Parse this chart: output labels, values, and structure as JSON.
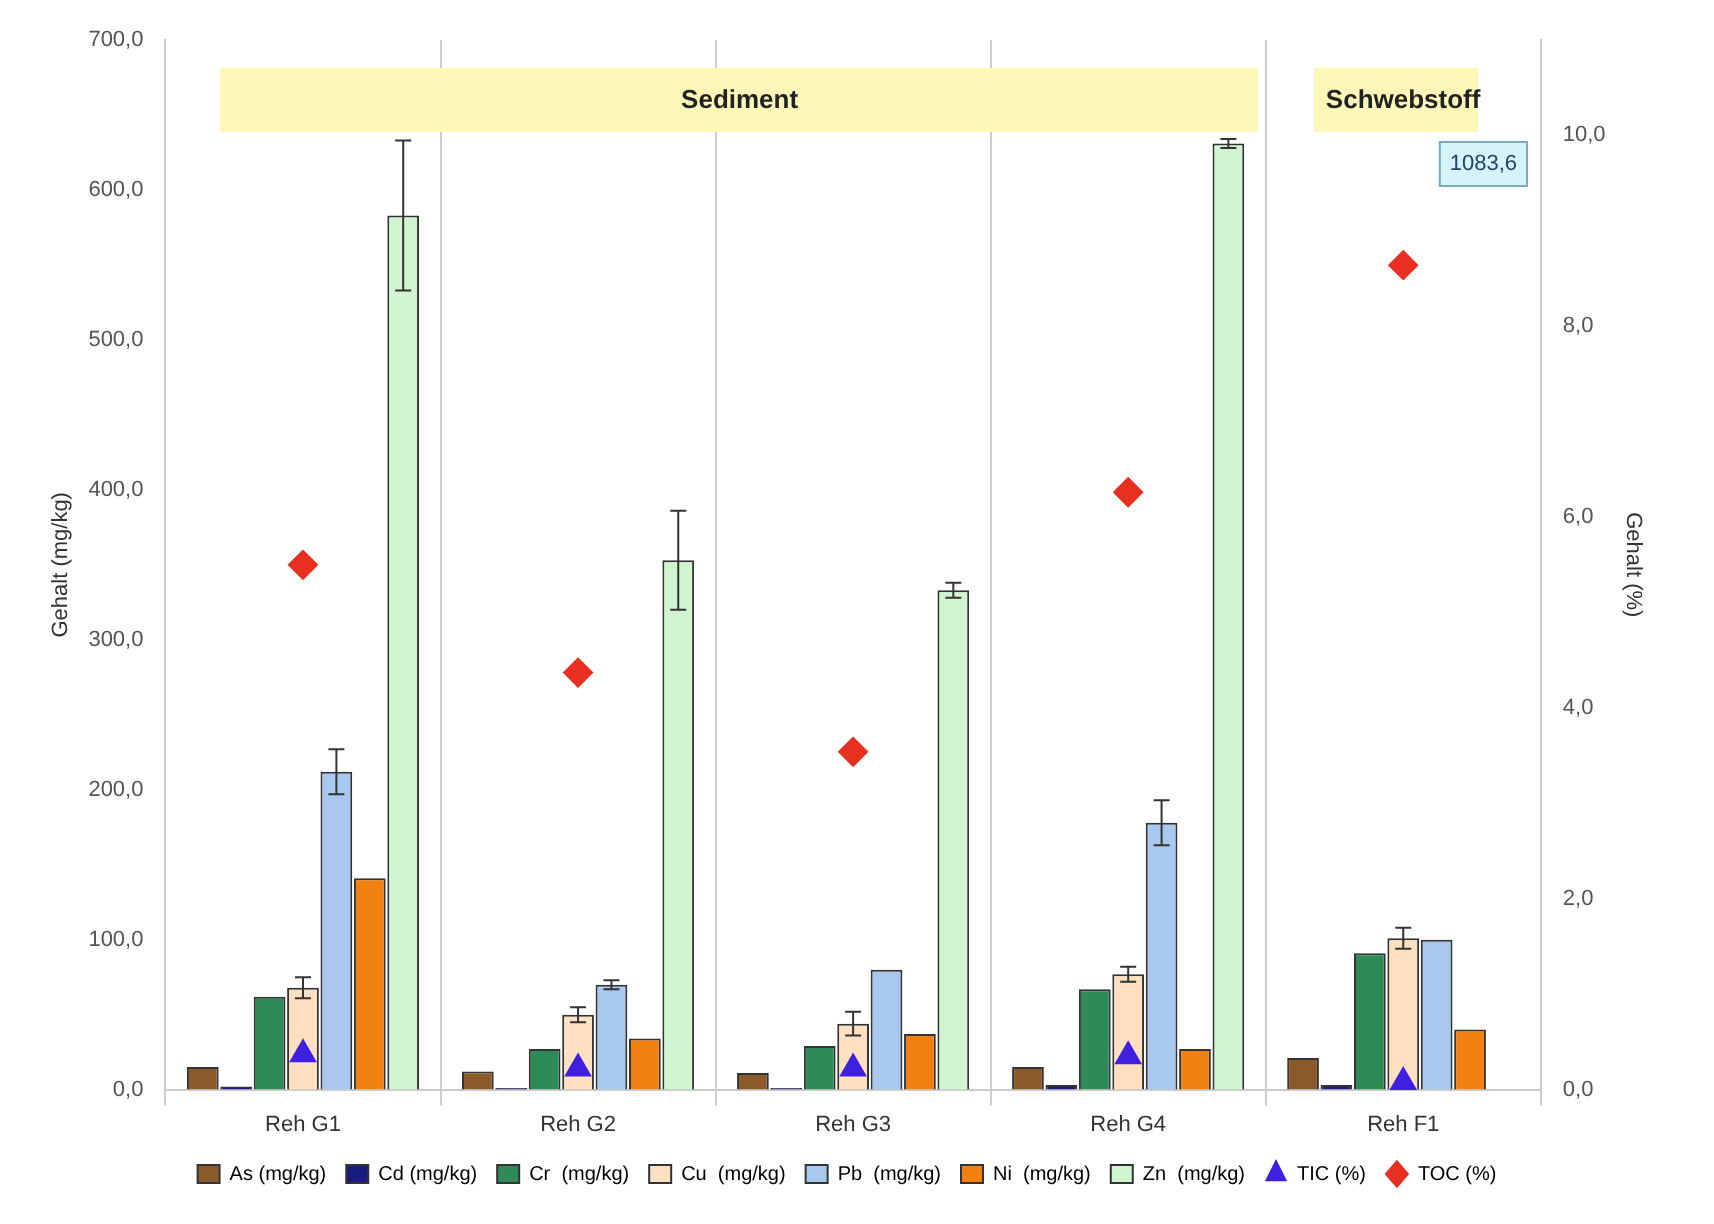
{
  "chart_data": {
    "type": "bar",
    "ylabel": "Gehalt (mg/kg)",
    "y2label": "Gehalt (%)",
    "categories": [
      "Reh G1",
      "Reh G2",
      "Reh G3",
      "Reh G4",
      "Reh F1"
    ],
    "series": [
      {
        "name": "As (mg/kg)",
        "color": "#8b5a2b",
        "values": [
          15,
          12,
          11,
          15,
          21
        ]
      },
      {
        "name": "Cd (mg/kg)",
        "color": "#1a1a80",
        "values": [
          2,
          1,
          1,
          3,
          3
        ]
      },
      {
        "name": "Cr  (mg/kg)",
        "color": "#2e8b57",
        "values": [
          62,
          27,
          29,
          67,
          91
        ]
      },
      {
        "name": "Cu  (mg/kg)",
        "color": "#fde0c0",
        "values": [
          68,
          50,
          44,
          77,
          101
        ],
        "errors": [
          7,
          5,
          8,
          5,
          7
        ]
      },
      {
        "name": "Pb  (mg/kg)",
        "color": "#a8c8f0",
        "values": [
          212,
          70,
          80,
          178,
          100
        ],
        "errors": [
          15,
          3,
          null,
          15,
          null
        ]
      },
      {
        "name": "Ni  (mg/kg)",
        "color": "#f08010",
        "values": [
          141,
          34,
          37,
          27,
          40
        ]
      },
      {
        "name": "Zn  (mg/kg)",
        "color": "#d0f5d0",
        "values": [
          583,
          353,
          333,
          631,
          null
        ],
        "errors": [
          50,
          33,
          5,
          3,
          null
        ],
        "value_labels": [
          null,
          null,
          null,
          null,
          "1083,6"
        ]
      },
      {
        "name": "TIC (%)",
        "type": "scatter",
        "axis": "y2",
        "marker": "triangle",
        "color": "#4020e0",
        "x": [
          "Reh G1",
          "Reh G2",
          "Reh G3",
          "Reh G4",
          "Reh F1"
        ],
        "values": [
          0.37,
          0.22,
          0.22,
          0.35,
          0.08
        ]
      },
      {
        "name": "TOC (%)",
        "type": "scatter",
        "axis": "y2",
        "marker": "diamond",
        "color": "#e83020",
        "x": [
          "Reh G1",
          "Reh G2",
          "Reh G3",
          "Reh G4",
          "Reh F1"
        ],
        "values": [
          5.5,
          4.37,
          3.54,
          6.26,
          8.64
        ]
      }
    ],
    "ylim": [
      0,
      700
    ],
    "yticks": [
      {
        "value": 0,
        "label": "0,0"
      },
      {
        "value": 100,
        "label": "100,0"
      },
      {
        "value": 200,
        "label": "200,0"
      },
      {
        "value": 300,
        "label": "300,0"
      },
      {
        "value": 400,
        "label": "400,0"
      },
      {
        "value": 500,
        "label": "500,0"
      },
      {
        "value": 600,
        "label": "600,0"
      },
      {
        "value": 700,
        "label": "700,0"
      }
    ],
    "y2lim": [
      0,
      11
    ],
    "y2ticks": [
      {
        "value": 0,
        "label": "0,0"
      },
      {
        "value": 2,
        "label": "2,0"
      },
      {
        "value": 4,
        "label": "4,0"
      },
      {
        "value": 6,
        "label": "6,0"
      },
      {
        "value": 8,
        "label": "8,0"
      },
      {
        "value": 10,
        "label": "10,0"
      }
    ],
    "annotations": [
      "Sediment",
      "Schwebstoff"
    ],
    "grid": "x",
    "legend": "bottom"
  }
}
